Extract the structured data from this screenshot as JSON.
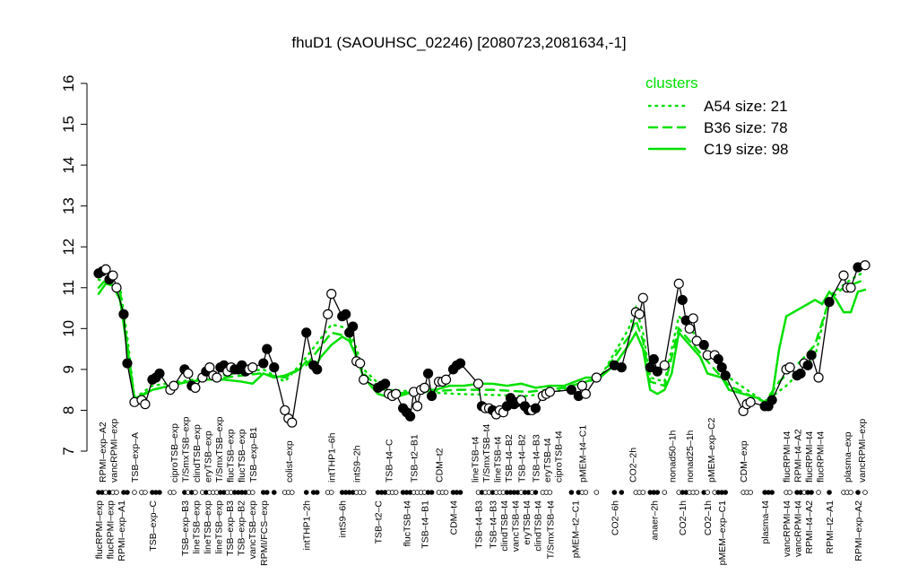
{
  "chart_data": {
    "type": "line",
    "title": "fhuD1 (SAOUHSC_02246) [2080723,2081634,-1]",
    "xlabel": "",
    "ylabel": "",
    "ylim": [
      7,
      16
    ],
    "xlim": [
      0,
      214
    ],
    "yticks": [
      7,
      8,
      9,
      10,
      11,
      12,
      13,
      14,
      15,
      16
    ],
    "grid": false,
    "colors": {
      "points": "#000000",
      "clusters": "#00e000"
    },
    "legend": {
      "title": "clusters",
      "placement": "top-right",
      "entries": [
        {
          "label": "A54 size: 21",
          "style": "dotted"
        },
        {
          "label": "B36 size: 78",
          "style": "dashed"
        },
        {
          "label": "C19 size: 98",
          "style": "solid"
        }
      ]
    },
    "points": [
      [
        0,
        11.35,
        1
      ],
      [
        1,
        11.4,
        1
      ],
      [
        2,
        11.45,
        0
      ],
      [
        3,
        11.2,
        1
      ],
      [
        4,
        11.3,
        0
      ],
      [
        5,
        11.0,
        0
      ],
      [
        7,
        10.35,
        1
      ],
      [
        8,
        9.15,
        1
      ],
      [
        10,
        8.2,
        0
      ],
      [
        12,
        8.25,
        0
      ],
      [
        13,
        8.15,
        0
      ],
      [
        15,
        8.75,
        1
      ],
      [
        16,
        8.8,
        1
      ],
      [
        17,
        8.9,
        1
      ],
      [
        20,
        8.5,
        0
      ],
      [
        21,
        8.6,
        0
      ],
      [
        24,
        9.0,
        1
      ],
      [
        25,
        8.9,
        0
      ],
      [
        26,
        8.6,
        1
      ],
      [
        27,
        8.55,
        0
      ],
      [
        29,
        8.8,
        0
      ],
      [
        30,
        8.95,
        1
      ],
      [
        31,
        9.05,
        0
      ],
      [
        32,
        8.85,
        0
      ],
      [
        33,
        8.8,
        0
      ],
      [
        34,
        9.05,
        1
      ],
      [
        35,
        9.1,
        1
      ],
      [
        36,
        8.95,
        0
      ],
      [
        37,
        9.05,
        0
      ],
      [
        38,
        9.0,
        1
      ],
      [
        39,
        9.0,
        1
      ],
      [
        40,
        9.1,
        1
      ],
      [
        41,
        8.95,
        1
      ],
      [
        42,
        9.0,
        0
      ],
      [
        43,
        9.05,
        0
      ],
      [
        46,
        9.15,
        1
      ],
      [
        47,
        9.5,
        1
      ],
      [
        49,
        9.05,
        1
      ],
      [
        52,
        8.0,
        0
      ],
      [
        53,
        7.8,
        0
      ],
      [
        54,
        7.7,
        0
      ],
      [
        58,
        9.9,
        1
      ],
      [
        60,
        9.1,
        1
      ],
      [
        61,
        9.0,
        1
      ],
      [
        64,
        10.35,
        0
      ],
      [
        65,
        10.85,
        0
      ],
      [
        68,
        10.3,
        1
      ],
      [
        69,
        10.35,
        1
      ],
      [
        70,
        9.9,
        1
      ],
      [
        71,
        10.05,
        1
      ],
      [
        72,
        9.2,
        0
      ],
      [
        73,
        9.15,
        0
      ],
      [
        74,
        8.75,
        0
      ],
      [
        78,
        8.55,
        1
      ],
      [
        79,
        8.6,
        1
      ],
      [
        80,
        8.65,
        1
      ],
      [
        81,
        8.4,
        0
      ],
      [
        82,
        8.35,
        0
      ],
      [
        83,
        8.4,
        0
      ],
      [
        85,
        8.05,
        1
      ],
      [
        86,
        7.95,
        1
      ],
      [
        87,
        7.85,
        1
      ],
      [
        88,
        8.45,
        0
      ],
      [
        89,
        8.1,
        0
      ],
      [
        90,
        8.5,
        0
      ],
      [
        91,
        8.55,
        0
      ],
      [
        92,
        8.9,
        1
      ],
      [
        93,
        8.35,
        1
      ],
      [
        95,
        8.7,
        0
      ],
      [
        96,
        8.7,
        0
      ],
      [
        97,
        8.75,
        0
      ],
      [
        99,
        9.0,
        1
      ],
      [
        100,
        9.1,
        1
      ],
      [
        101,
        9.15,
        1
      ],
      [
        106,
        8.65,
        0
      ],
      [
        107,
        8.1,
        1
      ],
      [
        108,
        8.05,
        0
      ],
      [
        109,
        8.05,
        0
      ],
      [
        110,
        8.0,
        1
      ],
      [
        111,
        7.9,
        0
      ],
      [
        112,
        8.0,
        0
      ],
      [
        113,
        7.95,
        0
      ],
      [
        114,
        8.1,
        1
      ],
      [
        115,
        8.3,
        1
      ],
      [
        116,
        8.15,
        1
      ],
      [
        117,
        8.2,
        1
      ],
      [
        118,
        8.25,
        0
      ],
      [
        119,
        8.1,
        1
      ],
      [
        120,
        8.0,
        1
      ],
      [
        121,
        8.0,
        0
      ],
      [
        122,
        8.05,
        1
      ],
      [
        124,
        8.35,
        0
      ],
      [
        125,
        8.4,
        0
      ],
      [
        126,
        8.45,
        0
      ],
      [
        132,
        8.5,
        1
      ],
      [
        134,
        8.35,
        1
      ],
      [
        135,
        8.6,
        0
      ],
      [
        136,
        8.4,
        0
      ],
      [
        139,
        8.8,
        0
      ],
      [
        144,
        9.1,
        1
      ],
      [
        146,
        9.05,
        1
      ],
      [
        150,
        10.4,
        0
      ],
      [
        151,
        10.35,
        0
      ],
      [
        152,
        10.75,
        0
      ],
      [
        154,
        9.05,
        1
      ],
      [
        155,
        9.25,
        1
      ],
      [
        156,
        8.95,
        1
      ],
      [
        158,
        9.1,
        0
      ],
      [
        162,
        11.1,
        0
      ],
      [
        163,
        10.7,
        1
      ],
      [
        164,
        10.2,
        1
      ],
      [
        165,
        10.0,
        0
      ],
      [
        166,
        10.25,
        0
      ],
      [
        167,
        9.7,
        0
      ],
      [
        169,
        9.6,
        1
      ],
      [
        170,
        9.35,
        0
      ],
      [
        172,
        9.35,
        0
      ],
      [
        173,
        9.25,
        1
      ],
      [
        174,
        9.05,
        1
      ],
      [
        175,
        8.85,
        1
      ],
      [
        180,
        7.98,
        0
      ],
      [
        181,
        8.15,
        0
      ],
      [
        182,
        8.2,
        0
      ],
      [
        186,
        8.1,
        1
      ],
      [
        187,
        8.1,
        1
      ],
      [
        188,
        8.25,
        1
      ],
      [
        192,
        9.0,
        0
      ],
      [
        193,
        9.05,
        0
      ],
      [
        195,
        8.85,
        1
      ],
      [
        196,
        8.9,
        1
      ],
      [
        197,
        9.15,
        0
      ],
      [
        198,
        9.1,
        1
      ],
      [
        199,
        9.35,
        1
      ],
      [
        201,
        8.8,
        0
      ],
      [
        204,
        10.65,
        1
      ],
      [
        208,
        11.3,
        0
      ],
      [
        209,
        11.0,
        0
      ],
      [
        210,
        11.0,
        0
      ],
      [
        212,
        11.5,
        1
      ],
      [
        214,
        11.55,
        0
      ]
    ],
    "series": [
      {
        "name": "A54 size: 21",
        "style": "dotted",
        "x": [
          0,
          6,
          8,
          10,
          15,
          30,
          46,
          52,
          58,
          65,
          70,
          74,
          80,
          100,
          120,
          130,
          140,
          148,
          150,
          152,
          154,
          158,
          162,
          170,
          176,
          186,
          192,
          200,
          204,
          210,
          214
        ],
        "values": [
          11.2,
          11.0,
          9.8,
          8.3,
          8.6,
          8.8,
          9.0,
          8.7,
          9.3,
          10.1,
          10.0,
          9.0,
          8.5,
          8.4,
          8.35,
          8.5,
          8.8,
          10.0,
          10.5,
          9.9,
          8.8,
          8.7,
          10.3,
          9.5,
          8.8,
          8.2,
          8.6,
          9.3,
          10.8,
          11.2,
          11.4
        ]
      },
      {
        "name": "B36 size: 78",
        "style": "dashed",
        "x": [
          0,
          2,
          6,
          8,
          10,
          15,
          25,
          35,
          45,
          52,
          58,
          65,
          70,
          74,
          80,
          90,
          100,
          110,
          120,
          130,
          140,
          148,
          150,
          152,
          154,
          158,
          162,
          168,
          176,
          186,
          190,
          196,
          200,
          204,
          208,
          214
        ],
        "values": [
          11.0,
          11.2,
          10.9,
          9.6,
          8.3,
          8.5,
          8.7,
          8.8,
          8.9,
          8.8,
          9.1,
          9.9,
          9.8,
          8.9,
          8.4,
          8.45,
          8.5,
          8.5,
          8.45,
          8.55,
          8.8,
          9.8,
          10.2,
          9.7,
          8.7,
          8.6,
          10.0,
          9.4,
          8.6,
          8.2,
          8.7,
          9.2,
          9.6,
          10.7,
          11.0,
          11.2
        ]
      },
      {
        "name": "C19 size: 98",
        "style": "solid",
        "x": [
          0,
          2,
          4,
          6,
          8,
          10,
          12,
          15,
          20,
          25,
          30,
          35,
          40,
          43,
          46,
          49,
          52,
          56,
          58,
          60,
          62,
          65,
          68,
          70,
          72,
          74,
          78,
          82,
          86,
          90,
          94,
          98,
          102,
          106,
          110,
          114,
          118,
          122,
          126,
          130,
          136,
          140,
          144,
          148,
          150,
          152,
          154,
          156,
          158,
          160,
          162,
          164,
          168,
          170,
          174,
          176,
          180,
          184,
          186,
          188,
          190,
          192,
          196,
          200,
          202,
          204,
          206,
          208,
          210,
          212,
          214
        ],
        "values": [
          10.85,
          11.1,
          11.05,
          10.7,
          9.5,
          8.3,
          8.35,
          8.5,
          8.6,
          8.7,
          8.75,
          8.75,
          8.7,
          8.65,
          8.9,
          8.8,
          8.85,
          9.0,
          9.2,
          9.0,
          9.3,
          9.6,
          9.8,
          9.7,
          9.3,
          8.8,
          8.4,
          8.3,
          8.4,
          8.5,
          8.5,
          8.6,
          8.6,
          8.65,
          8.65,
          8.6,
          8.65,
          8.55,
          8.6,
          8.6,
          8.8,
          8.8,
          9.1,
          9.6,
          9.9,
          9.5,
          8.5,
          8.4,
          8.5,
          8.9,
          9.9,
          9.7,
          9.3,
          8.9,
          8.8,
          8.5,
          8.4,
          8.3,
          8.2,
          8.3,
          9.5,
          10.3,
          10.5,
          10.7,
          10.6,
          10.9,
          10.7,
          10.4,
          10.4,
          10.9,
          10.95
        ]
      }
    ],
    "xlabels_upper": [
      [
        1,
        "RPMI–exp–A2"
      ],
      [
        3,
        "vancRPMI–exp"
      ],
      [
        10,
        "TSB–exp–A"
      ],
      [
        21,
        "ciproTSB–exp"
      ],
      [
        24,
        "T/SmxTSB–exp"
      ],
      [
        27,
        "clindTSB–exp"
      ],
      [
        30,
        "eryTSB–exp"
      ],
      [
        33,
        "T/SmxTSB–exp"
      ],
      [
        35,
        "flucTSB–exp"
      ],
      [
        37,
        "flucTSB–exp"
      ],
      [
        43,
        "TSB–exp–B1"
      ],
      [
        53,
        "colist–exp"
      ],
      [
        65,
        "intTHP1–6h"
      ],
      [
        72,
        "intS9–2h"
      ],
      [
        81,
        "TSB–t4–C"
      ],
      [
        88,
        "TSB–t2–B1"
      ],
      [
        95,
        "CDM–t2"
      ],
      [
        105,
        "lineTSB–t4"
      ],
      [
        108,
        "T/SmxTSB–t4"
      ],
      [
        111,
        "lineTSB–t4"
      ],
      [
        114,
        "TSB–t4–B2"
      ],
      [
        118,
        "TSB–t4–B2"
      ],
      [
        122,
        "TSB–t4–B3"
      ],
      [
        124,
        "eryTSB–t4"
      ],
      [
        127,
        "ciproTSB–t4"
      ],
      [
        135,
        "pMEM–t4–C1"
      ],
      [
        149,
        "CO2–2h"
      ],
      [
        160,
        "nonad50–1h"
      ],
      [
        165,
        "nonad25–1h"
      ],
      [
        171,
        "pMEM–exp–C2"
      ],
      [
        180,
        "CDM–exp"
      ],
      [
        192,
        "flucRPMI–t4"
      ],
      [
        194,
        "RPMI–t4–A2"
      ],
      [
        198,
        "flucRPMI–t4"
      ],
      [
        201,
        "flucRPMI–t4"
      ],
      [
        209,
        "plasma–exp"
      ],
      [
        213,
        "vancRPMI–exp"
      ]
    ],
    "xlabels_lower": [
      [
        0,
        "flucRPMI–exp"
      ],
      [
        3,
        "flucRPMI–exp"
      ],
      [
        6,
        "RPMI–exp–A1"
      ],
      [
        15,
        "TSB–exp–C"
      ],
      [
        24,
        "TSB–exp–B3"
      ],
      [
        26,
        "lineTSB–exp"
      ],
      [
        30,
        "lineTSB–exp"
      ],
      [
        33,
        "lineTSB–exp"
      ],
      [
        34,
        "TSB–exp–B3"
      ],
      [
        37,
        "TSB–exp–B2"
      ],
      [
        40,
        "vancTSB–exp"
      ],
      [
        46,
        "RPMI/FCS–exp"
      ],
      [
        58,
        "intTHP1–2h"
      ],
      [
        68,
        "intS9–6h"
      ],
      [
        78,
        "TSB–t2–C"
      ],
      [
        86,
        "flucTSB–t4"
      ],
      [
        91,
        "TSB–t4–B1"
      ],
      [
        99,
        "CDM–t4"
      ],
      [
        106,
        "TSB–t4–B3"
      ],
      [
        110,
        "TSB–t4–B3"
      ],
      [
        113,
        "clindTSB–t4"
      ],
      [
        116,
        "vancTSB–t4"
      ],
      [
        119,
        "eryTSB–t4"
      ],
      [
        122,
        "clindTSB–t4"
      ],
      [
        126,
        "T/SmxTSB–t4"
      ],
      [
        133,
        "pMEM–t2–C1"
      ],
      [
        144,
        "CO2–6h"
      ],
      [
        155,
        "anaer–2h"
      ],
      [
        163,
        "CO2–1h"
      ],
      [
        170,
        "CO2–1h"
      ],
      [
        174,
        "pMEM–exp–C1"
      ],
      [
        186,
        "plasma–t4"
      ],
      [
        192,
        "vancRPMI–t4"
      ],
      [
        194,
        "vancRPMI–t4"
      ],
      [
        197,
        "RPMI–t4–A2"
      ],
      [
        204,
        "RPMI–t2–A1"
      ],
      [
        212,
        "RPMI–exp–A2"
      ]
    ]
  }
}
